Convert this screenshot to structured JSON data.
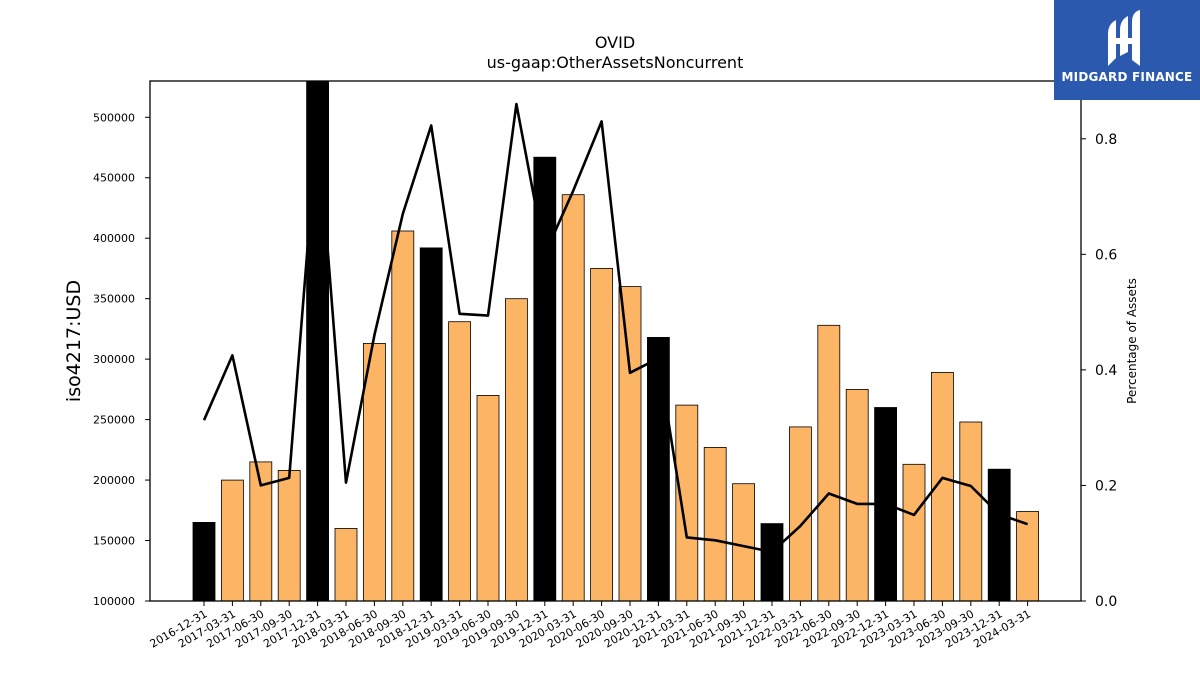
{
  "chart_data": {
    "type": "bar",
    "title": "OVID",
    "subtitle": "us-gaap:OtherAssetsNoncurrent",
    "ylabel": "iso4217:USD",
    "y2label": "Percentage of Assets",
    "ylim": [
      100000,
      530000
    ],
    "y2lim": [
      0.0,
      0.9
    ],
    "yticks": [
      100000,
      150000,
      200000,
      250000,
      300000,
      350000,
      400000,
      450000,
      500000
    ],
    "y2ticks": [
      "0.0",
      "0.2",
      "0.4",
      "0.6",
      "0.8"
    ],
    "categories": [
      "2016-12-31",
      "2017-03-31",
      "2017-06-30",
      "2017-09-30",
      "2017-12-31",
      "2018-03-31",
      "2018-06-30",
      "2018-09-30",
      "2018-12-31",
      "2019-03-31",
      "2019-06-30",
      "2019-09-30",
      "2019-12-31",
      "2020-03-31",
      "2020-06-30",
      "2020-09-30",
      "2020-12-31",
      "2021-03-31",
      "2021-06-30",
      "2021-09-30",
      "2021-12-31",
      "2022-03-31",
      "2022-06-30",
      "2022-09-30",
      "2022-12-31",
      "2023-03-31",
      "2023-06-30",
      "2023-09-30",
      "2023-12-31",
      "2024-03-31"
    ],
    "values": [
      165000,
      200000,
      215000,
      208000,
      530000,
      160000,
      313000,
      406000,
      392000,
      331000,
      270000,
      350000,
      467000,
      436000,
      375000,
      360000,
      318000,
      262000,
      227000,
      197000,
      164000,
      244000,
      328000,
      275000,
      260000,
      213000,
      289000,
      248000,
      209000,
      174000
    ],
    "annual": [
      true,
      false,
      false,
      false,
      true,
      false,
      false,
      false,
      true,
      false,
      false,
      false,
      true,
      false,
      false,
      false,
      true,
      false,
      false,
      false,
      true,
      false,
      false,
      false,
      true,
      false,
      false,
      false,
      true,
      false
    ],
    "percentage": [
      0.313,
      0.425,
      0.2,
      0.213,
      0.83,
      0.205,
      0.46,
      0.67,
      0.823,
      0.497,
      0.494,
      0.86,
      0.6,
      0.71,
      0.83,
      0.395,
      0.42,
      0.11,
      0.105,
      0.095,
      0.085,
      0.13,
      0.186,
      0.168,
      0.168,
      0.149,
      0.213,
      0.199,
      0.15,
      0.133
    ],
    "colors": {
      "annual": "#000000",
      "quarter": "#fbb565",
      "line": "#000000"
    }
  },
  "logo": {
    "text": "MIDGARD FINANCE"
  }
}
